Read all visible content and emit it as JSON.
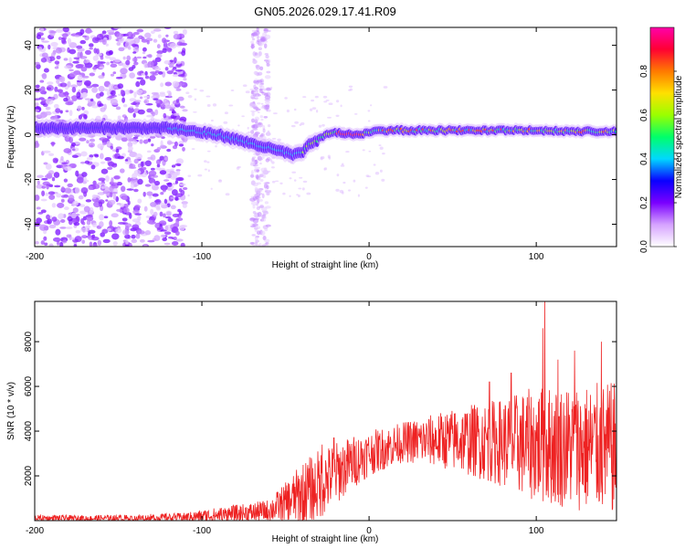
{
  "title": "GN05.2026.029.17.41.R09",
  "chart_data": [
    {
      "type": "heatmap",
      "xlabel": "Height of straight line (km)",
      "ylabel": "Frequency (Hz)",
      "xlim": [
        -200,
        148
      ],
      "ylim": [
        -50,
        48
      ],
      "xticks": [
        -200,
        -100,
        0,
        100
      ],
      "yticks": [
        -40,
        -20,
        0,
        20,
        40
      ],
      "ridge": {
        "x": [
          -120,
          -110,
          -100,
          -90,
          -80,
          -70,
          -60,
          -50,
          -45,
          -40,
          -35,
          -30,
          -25,
          -20,
          -15,
          -10,
          -5,
          0,
          10,
          30,
          60,
          90,
          120,
          148
        ],
        "y": [
          3,
          2,
          1,
          0,
          -2,
          -4,
          -6,
          -8,
          -9,
          -8,
          -4,
          -2,
          0,
          1,
          0.5,
          0,
          0.5,
          1,
          2,
          2,
          2,
          2,
          1.5,
          1.5
        ]
      },
      "colorbar": {
        "label": "Normalized spectral amplitude",
        "ticks": [
          "0.0",
          "0.2",
          "0.4",
          "0.6",
          "0.8"
        ],
        "colors": [
          "#ffffff",
          "#d6a3ff",
          "#7a00ff",
          "#0a00ff",
          "#00d8ff",
          "#00ff6a",
          "#9aff00",
          "#ffe000",
          "#ff7a00",
          "#ff0033",
          "#ff00aa"
        ]
      }
    },
    {
      "type": "line",
      "xlabel": "Height of straight line (km)",
      "ylabel": "SNR (10 * v/v)",
      "xlim": [
        -200,
        148
      ],
      "ylim": [
        0,
        9800
      ],
      "xticks": [
        -200,
        -100,
        0,
        100
      ],
      "yticks": [
        2000,
        4000,
        6000,
        8000
      ],
      "color": "#ee2222",
      "envelope": {
        "x": [
          -200,
          -150,
          -110,
          -90,
          -70,
          -60,
          -50,
          -40,
          -30,
          -20,
          -10,
          0,
          20,
          40,
          60,
          80,
          100,
          120,
          148
        ],
        "base": [
          100,
          100,
          150,
          250,
          350,
          450,
          800,
          1200,
          1600,
          2100,
          2600,
          3000,
          3500,
          3600,
          3600,
          3500,
          3400,
          3300,
          3200
        ],
        "amp": [
          150,
          150,
          200,
          350,
          450,
          500,
          900,
          1400,
          1600,
          1400,
          1200,
          1000,
          900,
          1200,
          1600,
          2000,
          2600,
          2800,
          3000
        ]
      },
      "peaks": [
        {
          "x": 105,
          "y": 9800
        },
        {
          "x": 104,
          "y": 8600
        },
        {
          "x": 139,
          "y": 8000
        },
        {
          "x": 123,
          "y": 7600
        },
        {
          "x": 113,
          "y": 7200
        },
        {
          "x": 85,
          "y": 6600
        },
        {
          "x": 72,
          "y": 6200
        },
        {
          "x": -28,
          "y": 3400
        },
        {
          "x": -21,
          "y": 3700
        }
      ]
    }
  ]
}
